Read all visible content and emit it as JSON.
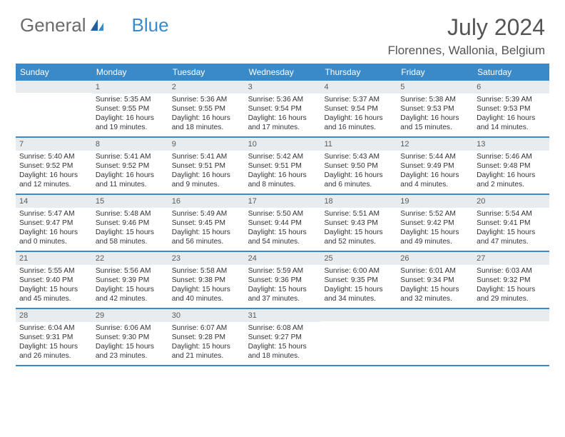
{
  "logo": {
    "text1": "General",
    "text2": "Blue"
  },
  "title": "July 2024",
  "location": "Florennes, Wallonia, Belgium",
  "colors": {
    "header_bg": "#3a8ac9",
    "daynum_bg": "#e9ecef",
    "border": "#3a8ac9",
    "text": "#333333",
    "title_text": "#555555",
    "logo_gray": "#6b6b6b",
    "logo_blue": "#3a8ac9"
  },
  "day_names": [
    "Sunday",
    "Monday",
    "Tuesday",
    "Wednesday",
    "Thursday",
    "Friday",
    "Saturday"
  ],
  "weeks": [
    [
      {
        "n": "",
        "l1": "",
        "l2": "",
        "l3": "",
        "l4": ""
      },
      {
        "n": "1",
        "l1": "Sunrise: 5:35 AM",
        "l2": "Sunset: 9:55 PM",
        "l3": "Daylight: 16 hours",
        "l4": "and 19 minutes."
      },
      {
        "n": "2",
        "l1": "Sunrise: 5:36 AM",
        "l2": "Sunset: 9:55 PM",
        "l3": "Daylight: 16 hours",
        "l4": "and 18 minutes."
      },
      {
        "n": "3",
        "l1": "Sunrise: 5:36 AM",
        "l2": "Sunset: 9:54 PM",
        "l3": "Daylight: 16 hours",
        "l4": "and 17 minutes."
      },
      {
        "n": "4",
        "l1": "Sunrise: 5:37 AM",
        "l2": "Sunset: 9:54 PM",
        "l3": "Daylight: 16 hours",
        "l4": "and 16 minutes."
      },
      {
        "n": "5",
        "l1": "Sunrise: 5:38 AM",
        "l2": "Sunset: 9:53 PM",
        "l3": "Daylight: 16 hours",
        "l4": "and 15 minutes."
      },
      {
        "n": "6",
        "l1": "Sunrise: 5:39 AM",
        "l2": "Sunset: 9:53 PM",
        "l3": "Daylight: 16 hours",
        "l4": "and 14 minutes."
      }
    ],
    [
      {
        "n": "7",
        "l1": "Sunrise: 5:40 AM",
        "l2": "Sunset: 9:52 PM",
        "l3": "Daylight: 16 hours",
        "l4": "and 12 minutes."
      },
      {
        "n": "8",
        "l1": "Sunrise: 5:41 AM",
        "l2": "Sunset: 9:52 PM",
        "l3": "Daylight: 16 hours",
        "l4": "and 11 minutes."
      },
      {
        "n": "9",
        "l1": "Sunrise: 5:41 AM",
        "l2": "Sunset: 9:51 PM",
        "l3": "Daylight: 16 hours",
        "l4": "and 9 minutes."
      },
      {
        "n": "10",
        "l1": "Sunrise: 5:42 AM",
        "l2": "Sunset: 9:51 PM",
        "l3": "Daylight: 16 hours",
        "l4": "and 8 minutes."
      },
      {
        "n": "11",
        "l1": "Sunrise: 5:43 AM",
        "l2": "Sunset: 9:50 PM",
        "l3": "Daylight: 16 hours",
        "l4": "and 6 minutes."
      },
      {
        "n": "12",
        "l1": "Sunrise: 5:44 AM",
        "l2": "Sunset: 9:49 PM",
        "l3": "Daylight: 16 hours",
        "l4": "and 4 minutes."
      },
      {
        "n": "13",
        "l1": "Sunrise: 5:46 AM",
        "l2": "Sunset: 9:48 PM",
        "l3": "Daylight: 16 hours",
        "l4": "and 2 minutes."
      }
    ],
    [
      {
        "n": "14",
        "l1": "Sunrise: 5:47 AM",
        "l2": "Sunset: 9:47 PM",
        "l3": "Daylight: 16 hours",
        "l4": "and 0 minutes."
      },
      {
        "n": "15",
        "l1": "Sunrise: 5:48 AM",
        "l2": "Sunset: 9:46 PM",
        "l3": "Daylight: 15 hours",
        "l4": "and 58 minutes."
      },
      {
        "n": "16",
        "l1": "Sunrise: 5:49 AM",
        "l2": "Sunset: 9:45 PM",
        "l3": "Daylight: 15 hours",
        "l4": "and 56 minutes."
      },
      {
        "n": "17",
        "l1": "Sunrise: 5:50 AM",
        "l2": "Sunset: 9:44 PM",
        "l3": "Daylight: 15 hours",
        "l4": "and 54 minutes."
      },
      {
        "n": "18",
        "l1": "Sunrise: 5:51 AM",
        "l2": "Sunset: 9:43 PM",
        "l3": "Daylight: 15 hours",
        "l4": "and 52 minutes."
      },
      {
        "n": "19",
        "l1": "Sunrise: 5:52 AM",
        "l2": "Sunset: 9:42 PM",
        "l3": "Daylight: 15 hours",
        "l4": "and 49 minutes."
      },
      {
        "n": "20",
        "l1": "Sunrise: 5:54 AM",
        "l2": "Sunset: 9:41 PM",
        "l3": "Daylight: 15 hours",
        "l4": "and 47 minutes."
      }
    ],
    [
      {
        "n": "21",
        "l1": "Sunrise: 5:55 AM",
        "l2": "Sunset: 9:40 PM",
        "l3": "Daylight: 15 hours",
        "l4": "and 45 minutes."
      },
      {
        "n": "22",
        "l1": "Sunrise: 5:56 AM",
        "l2": "Sunset: 9:39 PM",
        "l3": "Daylight: 15 hours",
        "l4": "and 42 minutes."
      },
      {
        "n": "23",
        "l1": "Sunrise: 5:58 AM",
        "l2": "Sunset: 9:38 PM",
        "l3": "Daylight: 15 hours",
        "l4": "and 40 minutes."
      },
      {
        "n": "24",
        "l1": "Sunrise: 5:59 AM",
        "l2": "Sunset: 9:36 PM",
        "l3": "Daylight: 15 hours",
        "l4": "and 37 minutes."
      },
      {
        "n": "25",
        "l1": "Sunrise: 6:00 AM",
        "l2": "Sunset: 9:35 PM",
        "l3": "Daylight: 15 hours",
        "l4": "and 34 minutes."
      },
      {
        "n": "26",
        "l1": "Sunrise: 6:01 AM",
        "l2": "Sunset: 9:34 PM",
        "l3": "Daylight: 15 hours",
        "l4": "and 32 minutes."
      },
      {
        "n": "27",
        "l1": "Sunrise: 6:03 AM",
        "l2": "Sunset: 9:32 PM",
        "l3": "Daylight: 15 hours",
        "l4": "and 29 minutes."
      }
    ],
    [
      {
        "n": "28",
        "l1": "Sunrise: 6:04 AM",
        "l2": "Sunset: 9:31 PM",
        "l3": "Daylight: 15 hours",
        "l4": "and 26 minutes."
      },
      {
        "n": "29",
        "l1": "Sunrise: 6:06 AM",
        "l2": "Sunset: 9:30 PM",
        "l3": "Daylight: 15 hours",
        "l4": "and 23 minutes."
      },
      {
        "n": "30",
        "l1": "Sunrise: 6:07 AM",
        "l2": "Sunset: 9:28 PM",
        "l3": "Daylight: 15 hours",
        "l4": "and 21 minutes."
      },
      {
        "n": "31",
        "l1": "Sunrise: 6:08 AM",
        "l2": "Sunset: 9:27 PM",
        "l3": "Daylight: 15 hours",
        "l4": "and 18 minutes."
      },
      {
        "n": "",
        "l1": "",
        "l2": "",
        "l3": "",
        "l4": ""
      },
      {
        "n": "",
        "l1": "",
        "l2": "",
        "l3": "",
        "l4": ""
      },
      {
        "n": "",
        "l1": "",
        "l2": "",
        "l3": "",
        "l4": ""
      }
    ]
  ]
}
